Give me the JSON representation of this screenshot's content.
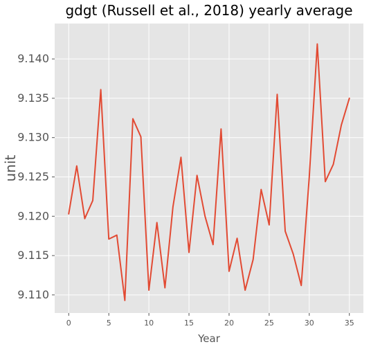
{
  "chart_data": {
    "type": "line",
    "title": "gdgt (Russell et al., 2018) yearly average",
    "xlabel": "Year",
    "ylabel": "unit",
    "xlim": [
      -1.75,
      36.75
    ],
    "ylim": [
      9.1077,
      9.1445
    ],
    "x_ticks": [
      0,
      5,
      10,
      15,
      20,
      25,
      30,
      35
    ],
    "y_ticks": [
      9.11,
      9.115,
      9.12,
      9.125,
      9.13,
      9.135,
      9.14
    ],
    "x_tick_labels": [
      "0",
      "5",
      "10",
      "15",
      "20",
      "25",
      "30",
      "35"
    ],
    "y_tick_labels": [
      "9.110",
      "9.115",
      "9.120",
      "9.125",
      "9.130",
      "9.135",
      "9.140"
    ],
    "grid": true,
    "series": [
      {
        "color": "#E24A33",
        "x": [
          0,
          1,
          2,
          3,
          4,
          5,
          6,
          7,
          8,
          9,
          10,
          11,
          12,
          13,
          14,
          15,
          16,
          17,
          18,
          19,
          20,
          21,
          22,
          23,
          24,
          25,
          26,
          27,
          28,
          29,
          30,
          31,
          32,
          33,
          34,
          35
        ],
        "values": [
          9.1203,
          9.1264,
          9.1197,
          9.122,
          9.1361,
          9.1171,
          9.1176,
          9.1093,
          9.1324,
          9.1301,
          9.1106,
          9.1192,
          9.1109,
          9.1212,
          9.1275,
          9.1154,
          9.1252,
          9.12,
          9.1164,
          9.1311,
          9.113,
          9.1172,
          9.1106,
          9.1145,
          9.1234,
          9.1189,
          9.1355,
          9.1181,
          9.1152,
          9.1112,
          9.125,
          9.1419,
          9.1244,
          9.1266,
          9.1316,
          9.135
        ]
      }
    ]
  }
}
